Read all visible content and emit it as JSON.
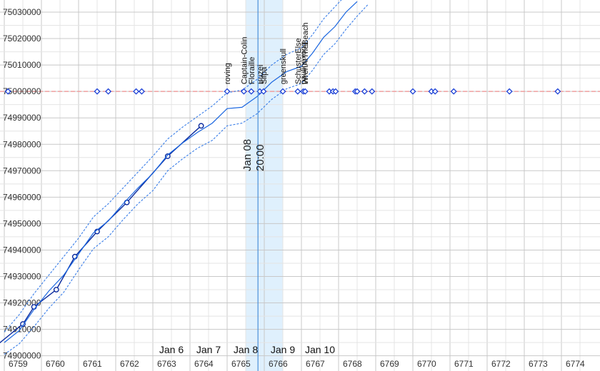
{
  "chart_data": {
    "type": "line",
    "xlim": [
      6759,
      6774.6
    ],
    "ylim": [
      74900000,
      75035000
    ],
    "grid": true,
    "x_ticks": [
      6759,
      6760,
      6761,
      6762,
      6763,
      6764,
      6765,
      6766,
      6767,
      6768,
      6769,
      6770,
      6771,
      6772,
      6773,
      6774
    ],
    "y_ticks": [
      74900000,
      74910000,
      74920000,
      74930000,
      74940000,
      74950000,
      74960000,
      74970000,
      74980000,
      74990000,
      75000000,
      75010000,
      75020000,
      75030000
    ],
    "target_line": {
      "y": 75000000,
      "color": "#f0a0a0"
    },
    "highlight_band": {
      "x_start": 6765.5,
      "x_end": 6766.5,
      "color": "#dff0fd"
    },
    "cursor": {
      "x": 6765.83,
      "label_lines": [
        "Jan 08",
        "20:00"
      ],
      "color": "#4a90d9"
    },
    "date_labels": [
      {
        "x": 6763.5,
        "text": "Jan 6"
      },
      {
        "x": 6764.5,
        "text": "Jan 7"
      },
      {
        "x": 6765.5,
        "text": "Jan 8"
      },
      {
        "x": 6766.5,
        "text": "Jan 9"
      },
      {
        "x": 6767.5,
        "text": "Jan 10"
      }
    ],
    "series": [
      {
        "role": "observed",
        "color": "#0a2a9e",
        "points": [
          [
            6758.8,
            74904000
          ],
          [
            6759.5,
            74912000
          ],
          [
            6759.8,
            74918500
          ],
          [
            6760.4,
            74925000
          ],
          [
            6760.9,
            74937500
          ],
          [
            6761.5,
            74947000
          ],
          [
            6762.3,
            74958000
          ],
          [
            6763.4,
            74975500
          ],
          [
            6764.3,
            74987000
          ]
        ]
      },
      {
        "role": "trend",
        "color": "#1a66e0",
        "points": [
          [
            6759.0,
            74905000
          ],
          [
            6759.4,
            74909500
          ],
          [
            6759.8,
            74917500
          ],
          [
            6760.2,
            74924500
          ],
          [
            6760.6,
            74930500
          ],
          [
            6761.0,
            74938500
          ],
          [
            6761.4,
            74946500
          ],
          [
            6761.8,
            74951000
          ],
          [
            6762.2,
            74957500
          ],
          [
            6762.6,
            74963500
          ],
          [
            6763.0,
            74969000
          ],
          [
            6763.4,
            74976000
          ],
          [
            6763.8,
            74980500
          ],
          [
            6764.2,
            74984500
          ],
          [
            6764.6,
            74988000
          ],
          [
            6765.0,
            74993500
          ],
          [
            6765.4,
            74994000
          ],
          [
            6765.8,
            74998000
          ],
          [
            6766.2,
            75003500
          ],
          [
            6766.6,
            75007500
          ],
          [
            6767.0,
            75009500
          ],
          [
            6767.3,
            75014500
          ],
          [
            6767.6,
            75020500
          ],
          [
            6767.9,
            75024500
          ],
          [
            6768.2,
            75030000
          ],
          [
            6768.5,
            75034000
          ]
        ]
      },
      {
        "role": "upper-band",
        "color": "#3a7ee8",
        "points": [
          [
            6759.0,
            74909000
          ],
          [
            6759.4,
            74915500
          ],
          [
            6759.8,
            74923500
          ],
          [
            6760.2,
            74930500
          ],
          [
            6760.6,
            74937500
          ],
          [
            6761.0,
            74944500
          ],
          [
            6761.4,
            74952500
          ],
          [
            6761.8,
            74957500
          ],
          [
            6762.2,
            74963500
          ],
          [
            6762.6,
            74969500
          ],
          [
            6763.0,
            74975500
          ],
          [
            6763.4,
            74982000
          ],
          [
            6763.8,
            74986500
          ],
          [
            6764.2,
            74990500
          ],
          [
            6764.6,
            74994500
          ],
          [
            6765.0,
            74999500
          ],
          [
            6765.4,
            75000500
          ],
          [
            6765.8,
            75004500
          ],
          [
            6766.2,
            75010000
          ],
          [
            6766.6,
            75014000
          ],
          [
            6767.0,
            75016500
          ],
          [
            6767.3,
            75021500
          ],
          [
            6767.6,
            75027500
          ],
          [
            6767.9,
            75032000
          ],
          [
            6768.1,
            75035000
          ]
        ]
      },
      {
        "role": "lower-band",
        "color": "#3a7ee8",
        "points": [
          [
            6759.0,
            74900500
          ],
          [
            6759.4,
            74904500
          ],
          [
            6759.8,
            74911000
          ],
          [
            6760.2,
            74918000
          ],
          [
            6760.6,
            74924000
          ],
          [
            6761.0,
            74932500
          ],
          [
            6761.4,
            74940500
          ],
          [
            6761.8,
            74945000
          ],
          [
            6762.2,
            74951500
          ],
          [
            6762.6,
            74957500
          ],
          [
            6763.0,
            74962500
          ],
          [
            6763.4,
            74970000
          ],
          [
            6763.8,
            74974500
          ],
          [
            6764.2,
            74978500
          ],
          [
            6764.6,
            74981500
          ],
          [
            6765.0,
            74987000
          ],
          [
            6765.4,
            74988000
          ],
          [
            6765.8,
            74991500
          ],
          [
            6766.2,
            74997000
          ],
          [
            6766.6,
            75001000
          ],
          [
            6767.0,
            75003000
          ],
          [
            6767.3,
            75008000
          ],
          [
            6767.6,
            75014000
          ],
          [
            6767.9,
            75018000
          ],
          [
            6768.2,
            75023500
          ],
          [
            6768.5,
            75028500
          ],
          [
            6768.8,
            75033000
          ]
        ]
      }
    ],
    "markers": [
      {
        "x": 6759.1,
        "y": 75000000,
        "label": ""
      },
      {
        "x": 6761.5,
        "y": 75000000,
        "label": ""
      },
      {
        "x": 6761.8,
        "y": 75000000,
        "label": ""
      },
      {
        "x": 6762.55,
        "y": 75000000,
        "label": ""
      },
      {
        "x": 6762.7,
        "y": 75000000,
        "label": ""
      },
      {
        "x": 6765.0,
        "y": 75000000,
        "label": "roving"
      },
      {
        "x": 6765.45,
        "y": 75000000,
        "label": "Captain-Colin"
      },
      {
        "x": 6765.65,
        "y": 75000000,
        "label": "Floraille"
      },
      {
        "x": 6765.88,
        "y": 75000000,
        "label": "Buzel"
      },
      {
        "x": 6765.98,
        "y": 75000000,
        "label": "Silpa"
      },
      {
        "x": 6766.5,
        "y": 75000000,
        "label": "greenskull"
      },
      {
        "x": 6766.9,
        "y": 75000000,
        "label": "SchusterElse"
      },
      {
        "x": 6767.05,
        "y": 75000000,
        "label": "paulinexong"
      },
      {
        "x": 6767.1,
        "y": 75000000,
        "label": "WrenAtTheBeach"
      },
      {
        "x": 6767.75,
        "y": 75000000,
        "label": ""
      },
      {
        "x": 6767.85,
        "y": 75000000,
        "label": ""
      },
      {
        "x": 6767.92,
        "y": 75000000,
        "label": ""
      },
      {
        "x": 6768.45,
        "y": 75000000,
        "label": ""
      },
      {
        "x": 6768.5,
        "y": 75000000,
        "label": ""
      },
      {
        "x": 6768.7,
        "y": 75000000,
        "label": ""
      },
      {
        "x": 6768.9,
        "y": 75000000,
        "label": ""
      },
      {
        "x": 6770.0,
        "y": 75000000,
        "label": ""
      },
      {
        "x": 6770.5,
        "y": 75000000,
        "label": ""
      },
      {
        "x": 6770.6,
        "y": 75000000,
        "label": ""
      },
      {
        "x": 6771.1,
        "y": 75000000,
        "label": ""
      },
      {
        "x": 6772.6,
        "y": 75000000,
        "label": ""
      },
      {
        "x": 6773.9,
        "y": 75000000,
        "label": ""
      }
    ]
  }
}
